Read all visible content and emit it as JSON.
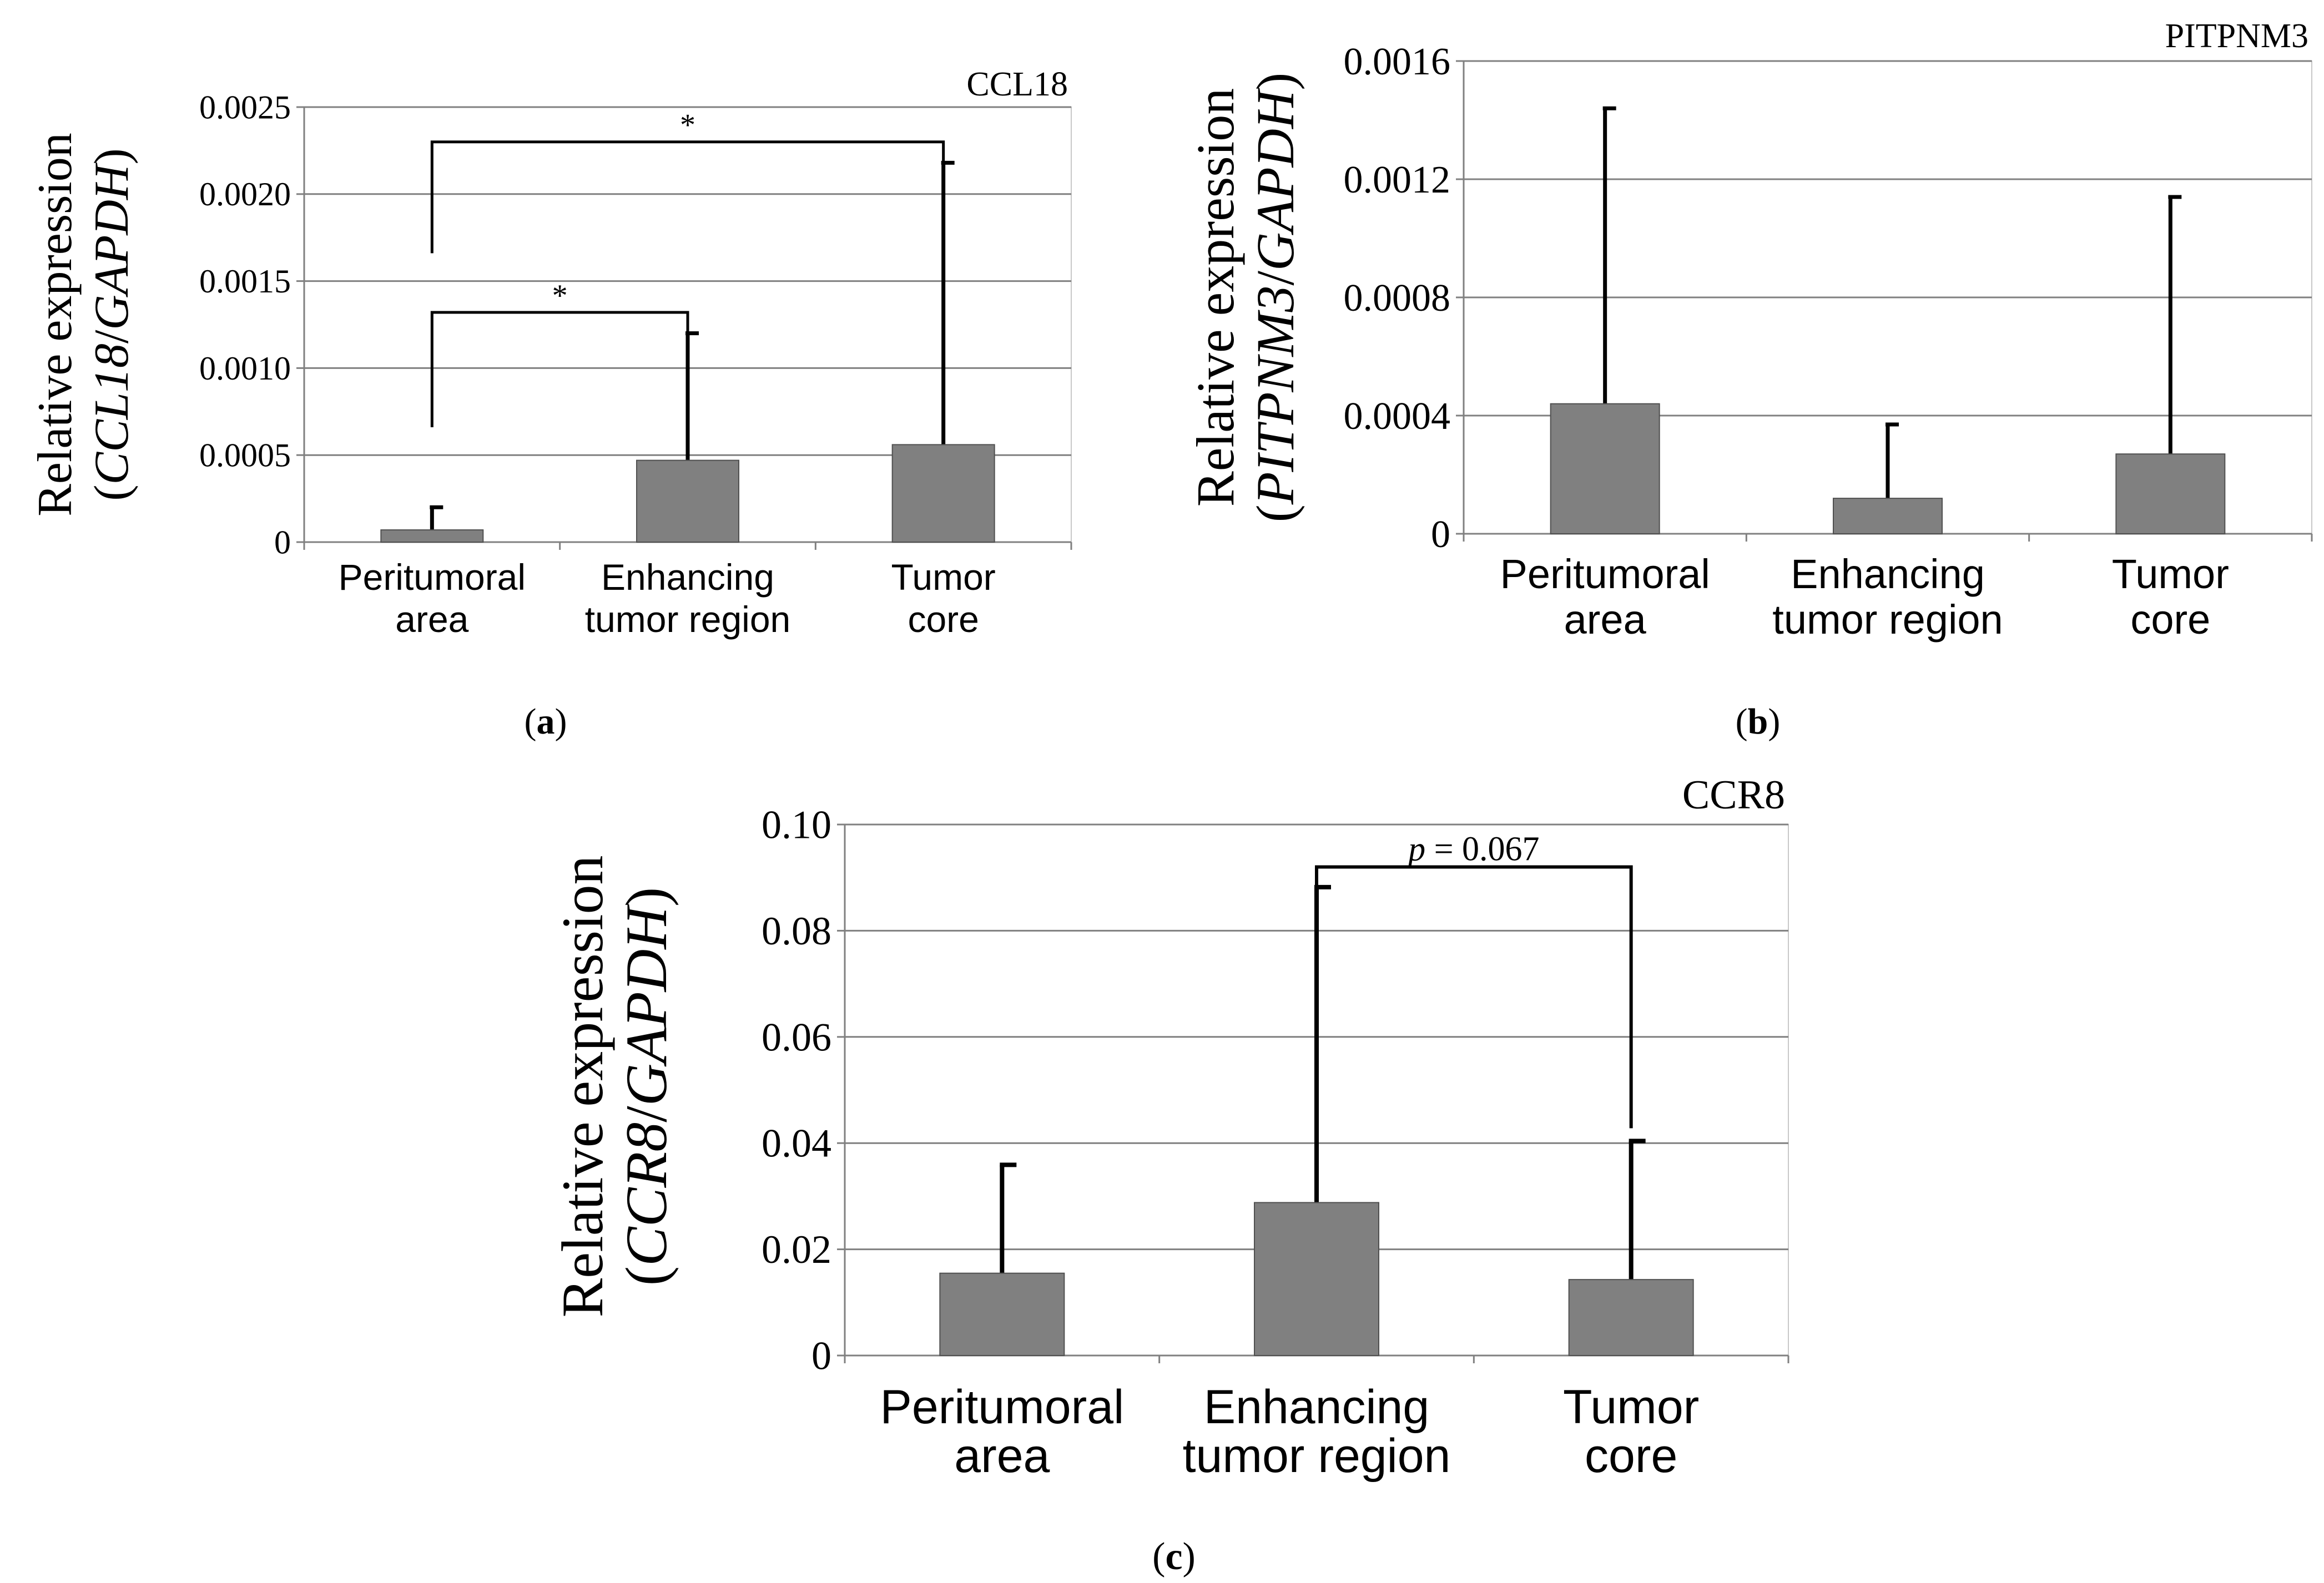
{
  "figure": {
    "colors": {
      "bar": "#808080",
      "bar_edge": "#505050",
      "grid": "#808080",
      "axis": "#808080",
      "error": "#000000"
    }
  },
  "chart_data": [
    {
      "panel": "a",
      "panel_label": "a",
      "type": "bar",
      "title": "CCL18",
      "ylabel": "Relative expression",
      "ylabel_gene": "CCL18",
      "ylabel_ref": "GAPDH",
      "categories": [
        [
          "Peritumoral",
          "area"
        ],
        [
          "Enhancing",
          "tumor region"
        ],
        [
          "Tumor",
          "core"
        ]
      ],
      "values": [
        7e-05,
        0.00047,
        0.00056
      ],
      "error_upper": [
        0.0002,
        0.0012,
        0.00218
      ],
      "ylim": [
        0,
        0.0025
      ],
      "yticks": [
        0,
        0.0005,
        0.001,
        0.0015,
        0.002,
        0.0025
      ],
      "ytick_labels": [
        "0",
        "0.0005",
        "0.0010",
        "0.0015",
        "0.0020",
        "0.0025"
      ],
      "grid": true,
      "brackets": [
        {
          "from": 0,
          "to": 1,
          "y": 0.00132,
          "left_drop_to": 0.00066,
          "right_drop_to": 0.0012,
          "label": "*"
        },
        {
          "from": 0,
          "to": 2,
          "y": 0.0023,
          "left_drop_to": 0.00166,
          "right_drop_to": 0.00218,
          "label": "*"
        }
      ]
    },
    {
      "panel": "b",
      "panel_label": "b",
      "type": "bar",
      "title": "PITPNM3",
      "ylabel": "Relative expression",
      "ylabel_gene": "PITPNM3",
      "ylabel_ref": "GAPDH",
      "categories": [
        [
          "Peritumoral",
          "area"
        ],
        [
          "Enhancing",
          "tumor region"
        ],
        [
          "Tumor",
          "core"
        ]
      ],
      "values": [
        0.00044,
        0.00012,
        0.00027
      ],
      "error_upper": [
        0.00144,
        0.00037,
        0.00114
      ],
      "ylim": [
        0,
        0.0016
      ],
      "yticks": [
        0,
        0.0004,
        0.0008,
        0.0012,
        0.0016
      ],
      "ytick_labels": [
        "0",
        "0.0004",
        "0.0008",
        "0.0012",
        "0.0016"
      ],
      "grid": true,
      "brackets": []
    },
    {
      "panel": "c",
      "panel_label": "c",
      "type": "bar",
      "title": "CCR8",
      "ylabel": "Relative expression",
      "ylabel_gene": "CCR8",
      "ylabel_ref": "GAPDH",
      "categories": [
        [
          "Peritumoral",
          "area"
        ],
        [
          "Enhancing",
          "tumor region"
        ],
        [
          "Tumor",
          "core"
        ]
      ],
      "values": [
        0.0155,
        0.0288,
        0.0143
      ],
      "error_upper": [
        0.0359,
        0.0882,
        0.0404
      ],
      "ylim": [
        0,
        0.1
      ],
      "yticks": [
        0,
        0.02,
        0.04,
        0.06,
        0.08,
        0.1
      ],
      "ytick_labels": [
        "0",
        "0.02",
        "0.04",
        "0.06",
        "0.08",
        "0.10"
      ],
      "grid": true,
      "brackets": [
        {
          "from": 1,
          "to": 2,
          "y": 0.092,
          "left_drop_to": 0.0882,
          "right_drop_to": 0.0428,
          "label_italic": "p",
          "label": " = 0.067"
        }
      ]
    }
  ]
}
